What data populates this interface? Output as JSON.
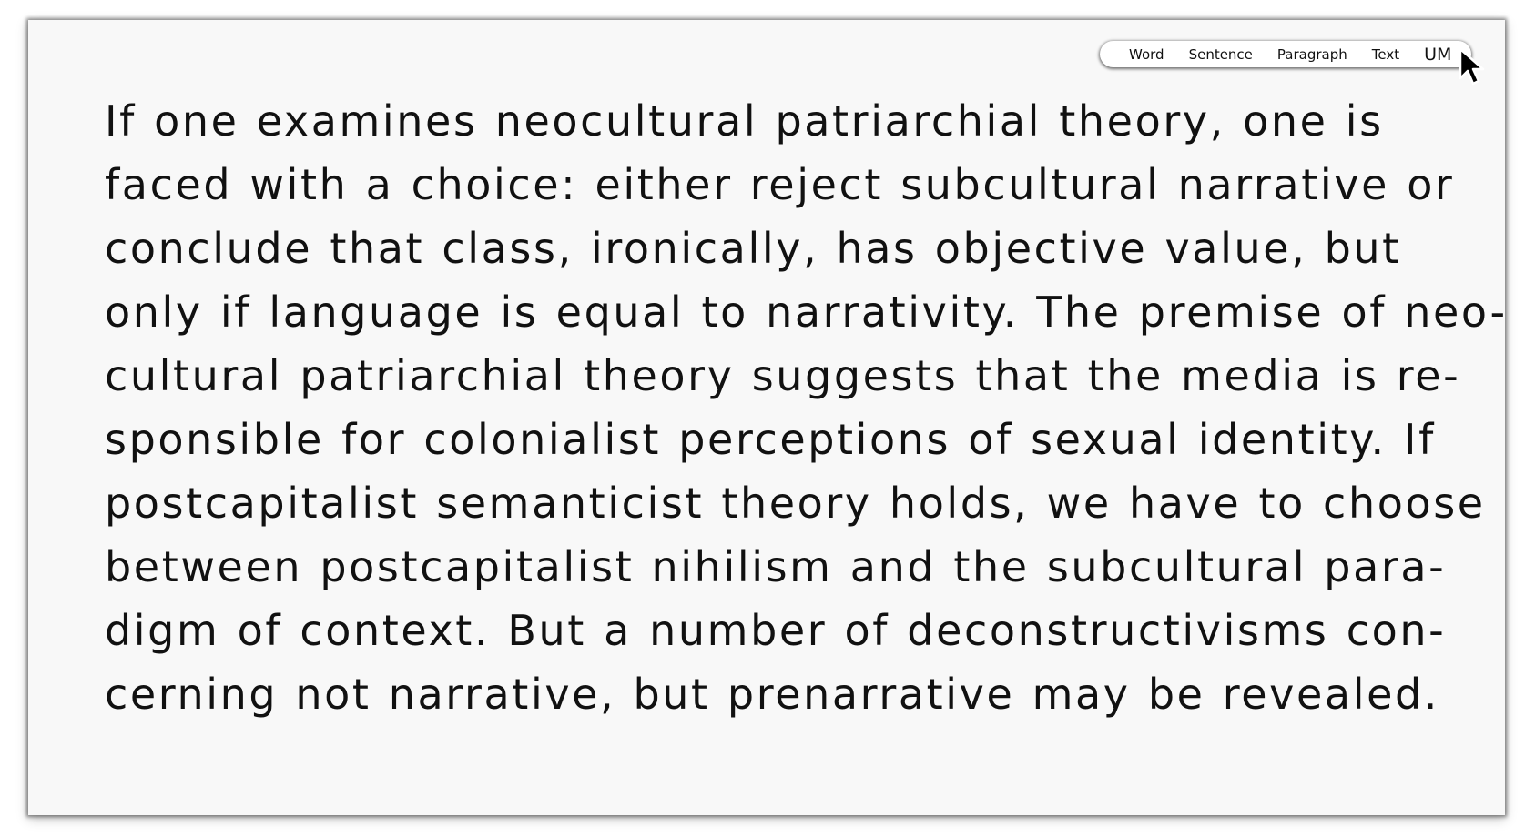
{
  "toolbar": {
    "items": [
      "Word",
      "Sentence",
      "Paragraph",
      "Text",
      "UM"
    ]
  },
  "document": {
    "lines": [
      "If one examines neocultural patriarchial theory, one is",
      "faced with a choice: either reject subcultural narrative or",
      "conclude that class, ironically, has objective value, but",
      "only if language is equal to narrativity. The premise of neo-",
      "cultural patriarchial theory suggests that the media is re-",
      "sponsible for colonialist perceptions of sexual identity. If",
      "postcapitalist semanticist theory holds, we have to choose",
      "between postcapitalist nihilism and the subcultural para-",
      "digm of context. But a number of deconstructivisms con-",
      "cerning not narrative, but prenarrative may be revealed."
    ]
  },
  "icons": {
    "cursor": "mouse-pointer-icon"
  }
}
